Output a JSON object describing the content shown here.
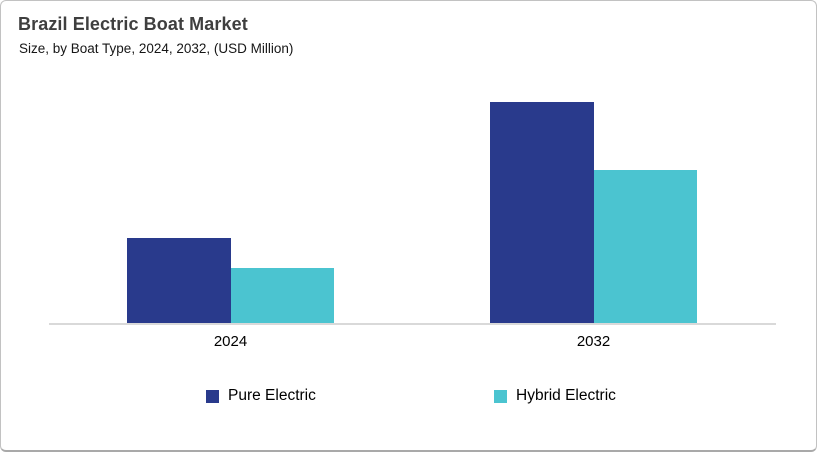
{
  "header": {
    "title": "Brazil Electric Boat Market",
    "subtitle": "Size, by Boat Type, 2024, 2032, (USD Million)"
  },
  "chart_data": {
    "type": "bar",
    "title": "Brazil Electric Boat Market",
    "subtitle": "Size, by Boat Type, 2024, 2032, (USD Million)",
    "categories": [
      "2024",
      "2032"
    ],
    "series": [
      {
        "name": "Pure Electric",
        "color": "#293A8C",
        "values": [
          85,
          221
        ]
      },
      {
        "name": "Hybrid Electric",
        "color": "#4BC4D0",
        "values": [
          55,
          153
        ]
      }
    ],
    "xlabel": "",
    "ylabel": "",
    "ylim": [
      0,
      237
    ],
    "grid": false,
    "y_axis_visible": false,
    "legend_position": "bottom"
  },
  "colors": {
    "pure_electric": "#293A8C",
    "hybrid_electric": "#4BC4D0",
    "axis_line": "#d9d9d9",
    "title_text": "#3f3f3f"
  }
}
